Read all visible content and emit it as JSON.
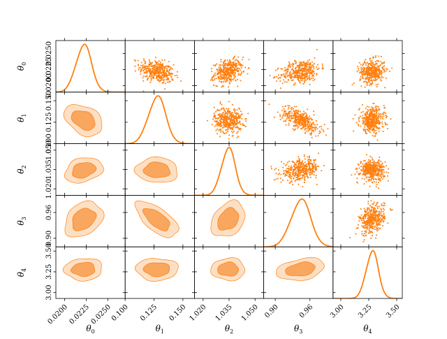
{
  "figure": {
    "type": "corner-plot"
  },
  "colors": {
    "accent": "#ff7f0e",
    "contour_outer": "#fde0c4",
    "contour_inner": "#f9a65e",
    "points": "#ff7f0e",
    "axis": "#000000"
  },
  "chart_data": {
    "type": "scatter",
    "subtype": "corner",
    "parameters": [
      {
        "name": "theta0",
        "label_base": "θ",
        "label_sub": "0",
        "mean": 0.0222,
        "sd": 0.0009,
        "range": [
          0.019,
          0.027
        ],
        "ticks": [
          0.02,
          0.0225,
          0.025
        ],
        "tick_labels": [
          "0.0200",
          "0.0225",
          "0.0250"
        ]
      },
      {
        "name": "theta1",
        "label_base": "θ",
        "label_sub": "1",
        "mean": 0.1275,
        "sd": 0.0075,
        "range": [
          0.1,
          0.16
        ],
        "ticks": [
          0.1,
          0.125,
          0.15
        ],
        "tick_labels": [
          "0.100",
          "0.125",
          "0.150"
        ]
      },
      {
        "name": "theta2",
        "label_base": "θ",
        "label_sub": "2",
        "mean": 1.0345,
        "sd": 0.004,
        "range": [
          1.015,
          1.055
        ],
        "ticks": [
          1.02,
          1.035,
          1.05
        ],
        "tick_labels": [
          "1.020",
          "1.035",
          "1.050"
        ]
      },
      {
        "name": "theta3",
        "label_base": "θ",
        "label_sub": "3",
        "mean": 0.944,
        "sd": 0.017,
        "range": [
          0.88,
          1.0
        ],
        "ticks": [
          0.9,
          0.96
        ],
        "tick_labels": [
          "0.90",
          "0.96"
        ]
      },
      {
        "name": "theta4",
        "label_base": "θ",
        "label_sub": "4",
        "mean": 3.28,
        "sd": 0.055,
        "range": [
          2.93,
          3.55
        ],
        "ticks": [
          3.0,
          3.25,
          3.5
        ],
        "tick_labels": [
          "3.00",
          "3.25",
          "3.50"
        ]
      }
    ],
    "x_tick_labels": [
      [
        "0.0200",
        "0.0225",
        "0.0250"
      ],
      [
        "0.100",
        "0.125",
        "0.150"
      ],
      [
        "1.020",
        "1.035",
        "1.050"
      ],
      [
        "0.90",
        "0.96"
      ],
      [
        "3.00",
        "3.25",
        "3.50"
      ]
    ],
    "correlations": [
      {
        "pair": [
          "theta1",
          "theta0"
        ],
        "rho": -0.35
      },
      {
        "pair": [
          "theta2",
          "theta0"
        ],
        "rho": 0.25
      },
      {
        "pair": [
          "theta3",
          "theta0"
        ],
        "rho": 0.3
      },
      {
        "pair": [
          "theta4",
          "theta0"
        ],
        "rho": 0.05
      },
      {
        "pair": [
          "theta2",
          "theta1"
        ],
        "rho": -0.05
      },
      {
        "pair": [
          "theta3",
          "theta1"
        ],
        "rho": -0.65
      },
      {
        "pair": [
          "theta4",
          "theta1"
        ],
        "rho": 0.0
      },
      {
        "pair": [
          "theta3",
          "theta2"
        ],
        "rho": 0.3
      },
      {
        "pair": [
          "theta4",
          "theta2"
        ],
        "rho": 0.0
      },
      {
        "pair": [
          "theta4",
          "theta3"
        ],
        "rho": 0.3
      }
    ],
    "samples_per_panel": 400,
    "lower_triangle": "filled-contours",
    "upper_triangle": "scatter",
    "diagonal": "1d-density",
    "grid": false,
    "legend": "none"
  }
}
